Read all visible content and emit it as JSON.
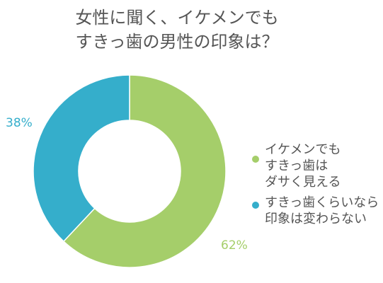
{
  "chart_data": {
    "type": "pie",
    "title": "女性に聞く、イケメンでも\nすきっ歯の男性の印象は？",
    "title_lines": [
      "女性に聞く、イケメンでも",
      "すきっ歯の男性の印象は？"
    ],
    "donut": true,
    "series": [
      {
        "name": "イケメンでも\nすきっ歯は\nダサく見える",
        "value": 62,
        "label": "62%",
        "color": "#a5ce6a"
      },
      {
        "name": "すきっ歯くらいなら\n印象は変わらない",
        "value": 38,
        "label": "38%",
        "color": "#35aecb"
      }
    ],
    "legend_position": "right"
  }
}
